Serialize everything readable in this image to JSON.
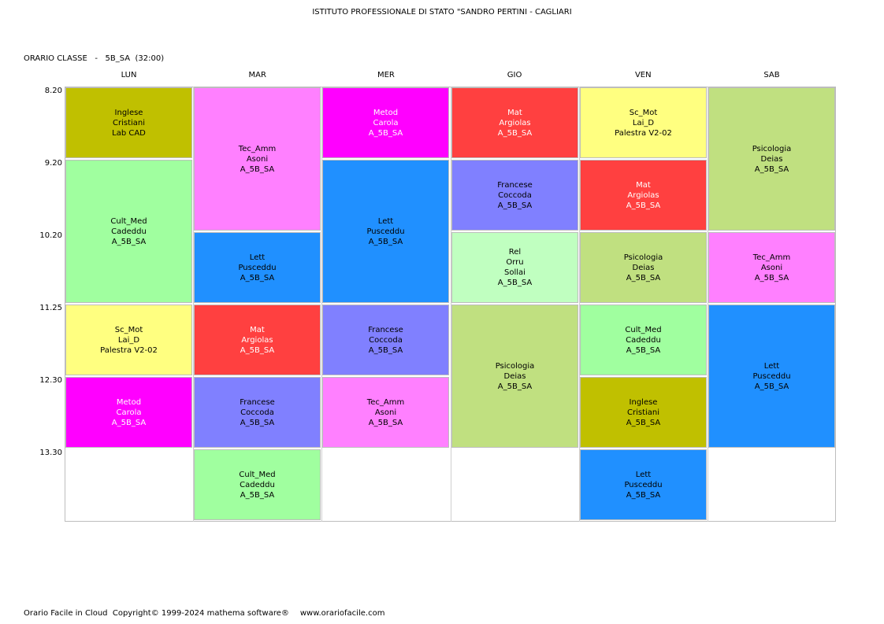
{
  "header": {
    "school": "ISTITUTO PROFESSIONALE DI STATO \"SANDRO PERTINI - CAGLIARI",
    "class_line": "ORARIO CLASSE   -   5B_SA  (32:00)"
  },
  "days": [
    "LUN",
    "MAR",
    "MER",
    "GIO",
    "VEN",
    "SAB"
  ],
  "times": [
    "8.20",
    "9.20",
    "10.20",
    "11.25",
    "12.30",
    "13.30"
  ],
  "colors": {
    "Inglese": "#c0c000",
    "Cult_Med": "#a0ff9f",
    "Sc_Mot": "#ffff80",
    "Metod": "#ff00ff",
    "Tec_Amm": "#ff80ff",
    "Lett": "#2090ff",
    "Mat": "#ff4040",
    "Francese": "#8080ff",
    "Rel": "#c0ffc0",
    "Psicologia": "#c0e080"
  },
  "text_colors": {
    "Metod": "#ffffff",
    "Mat": "#ffffff"
  },
  "lessons": [
    {
      "day": 0,
      "start": 0,
      "span": 1,
      "subject": "Inglese",
      "lines": [
        "Inglese",
        "Cristiani",
        "Lab CAD"
      ]
    },
    {
      "day": 0,
      "start": 1,
      "span": 2,
      "subject": "Cult_Med",
      "lines": [
        "Cult_Med",
        "Cadeddu",
        "A_5B_SA"
      ]
    },
    {
      "day": 0,
      "start": 3,
      "span": 1,
      "subject": "Sc_Mot",
      "lines": [
        "Sc_Mot",
        "Lai_D",
        "Palestra V2-02"
      ]
    },
    {
      "day": 0,
      "start": 4,
      "span": 1,
      "subject": "Metod",
      "lines": [
        "Metod",
        "Carola",
        "A_5B_SA"
      ]
    },
    {
      "day": 1,
      "start": 0,
      "span": 2,
      "subject": "Tec_Amm",
      "lines": [
        "Tec_Amm",
        "Asoni",
        "A_5B_SA"
      ]
    },
    {
      "day": 1,
      "start": 2,
      "span": 1,
      "subject": "Lett",
      "lines": [
        "Lett",
        "Pusceddu",
        "A_5B_SA"
      ]
    },
    {
      "day": 1,
      "start": 3,
      "span": 1,
      "subject": "Mat",
      "lines": [
        "Mat",
        "Argiolas",
        "A_5B_SA"
      ]
    },
    {
      "day": 1,
      "start": 4,
      "span": 1,
      "subject": "Francese",
      "lines": [
        "Francese",
        "Coccoda",
        "A_5B_SA"
      ]
    },
    {
      "day": 1,
      "start": 5,
      "span": 1,
      "subject": "Cult_Med",
      "lines": [
        "Cult_Med",
        "Cadeddu",
        "A_5B_SA"
      ]
    },
    {
      "day": 2,
      "start": 0,
      "span": 1,
      "subject": "Metod",
      "lines": [
        "Metod",
        "Carola",
        "A_5B_SA"
      ]
    },
    {
      "day": 2,
      "start": 1,
      "span": 2,
      "subject": "Lett",
      "lines": [
        "Lett",
        "Pusceddu",
        "A_5B_SA"
      ]
    },
    {
      "day": 2,
      "start": 3,
      "span": 1,
      "subject": "Francese",
      "lines": [
        "Francese",
        "Coccoda",
        "A_5B_SA"
      ]
    },
    {
      "day": 2,
      "start": 4,
      "span": 1,
      "subject": "Tec_Amm",
      "lines": [
        "Tec_Amm",
        "Asoni",
        "A_5B_SA"
      ]
    },
    {
      "day": 3,
      "start": 0,
      "span": 1,
      "subject": "Mat",
      "lines": [
        "Mat",
        "Argiolas",
        "A_5B_SA"
      ]
    },
    {
      "day": 3,
      "start": 1,
      "span": 1,
      "subject": "Francese",
      "lines": [
        "Francese",
        "Coccoda",
        "A_5B_SA"
      ]
    },
    {
      "day": 3,
      "start": 2,
      "span": 1,
      "subject": "Rel",
      "lines": [
        "Rel",
        "Orru",
        "Sollai",
        "A_5B_SA"
      ]
    },
    {
      "day": 3,
      "start": 3,
      "span": 2,
      "subject": "Psicologia",
      "lines": [
        "Psicologia",
        "Deias",
        "A_5B_SA"
      ]
    },
    {
      "day": 4,
      "start": 0,
      "span": 1,
      "subject": "Sc_Mot",
      "lines": [
        "Sc_Mot",
        "Lai_D",
        "Palestra V2-02"
      ]
    },
    {
      "day": 4,
      "start": 1,
      "span": 1,
      "subject": "Mat",
      "lines": [
        "Mat",
        "Argiolas",
        "A_5B_SA"
      ]
    },
    {
      "day": 4,
      "start": 2,
      "span": 1,
      "subject": "Psicologia",
      "lines": [
        "Psicologia",
        "Deias",
        "A_5B_SA"
      ]
    },
    {
      "day": 4,
      "start": 3,
      "span": 1,
      "subject": "Cult_Med",
      "lines": [
        "Cult_Med",
        "Cadeddu",
        "A_5B_SA"
      ]
    },
    {
      "day": 4,
      "start": 4,
      "span": 1,
      "subject": "Inglese",
      "lines": [
        "Inglese",
        "Cristiani",
        "A_5B_SA"
      ]
    },
    {
      "day": 4,
      "start": 5,
      "span": 1,
      "subject": "Lett",
      "lines": [
        "Lett",
        "Pusceddu",
        "A_5B_SA"
      ]
    },
    {
      "day": 5,
      "start": 0,
      "span": 2,
      "subject": "Psicologia",
      "lines": [
        "Psicologia",
        "Deias",
        "A_5B_SA"
      ]
    },
    {
      "day": 5,
      "start": 2,
      "span": 1,
      "subject": "Tec_Amm",
      "lines": [
        "Tec_Amm",
        "Asoni",
        "A_5B_SA"
      ]
    },
    {
      "day": 5,
      "start": 3,
      "span": 2,
      "subject": "Lett",
      "lines": [
        "Lett",
        "Pusceddu",
        "A_5B_SA"
      ]
    }
  ],
  "footer": {
    "copyright": "Orario Facile in Cloud  Copyright© 1999-2024 mathema software®",
    "website": "www.orariofacile.com"
  }
}
